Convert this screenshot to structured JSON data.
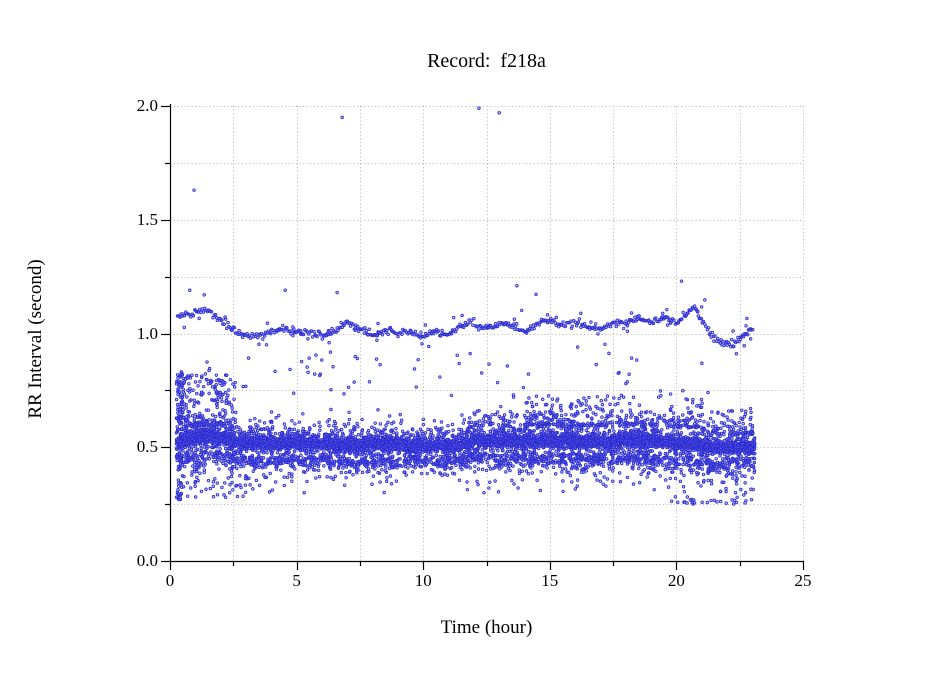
{
  "window": {
    "background_color": "#ffffff"
  },
  "chart_data": {
    "type": "scatter",
    "title": "Record:  f218a",
    "xlabel": "Time (hour)",
    "ylabel": "RR Interval (second)",
    "xlim": [
      0,
      25
    ],
    "ylim": [
      0.0,
      2.0
    ],
    "x_ticks": [
      {
        "v": 0,
        "label": "0"
      },
      {
        "v": 5,
        "label": "5"
      },
      {
        "v": 10,
        "label": "10"
      },
      {
        "v": 15,
        "label": "15"
      },
      {
        "v": 20,
        "label": "20"
      },
      {
        "v": 25,
        "label": "25"
      }
    ],
    "y_ticks": [
      {
        "v": 0.0,
        "label": "0.0"
      },
      {
        "v": 0.5,
        "label": "0.5"
      },
      {
        "v": 1.0,
        "label": "1.0"
      },
      {
        "v": 1.5,
        "label": "1.5"
      },
      {
        "v": 2.0,
        "label": "2.0"
      }
    ],
    "x_minor_step": 2.5,
    "y_minor_step": 0.25,
    "grid": {
      "visible": true,
      "style": "dotted",
      "color": "#b3b3b3",
      "at_minor_ticks": true
    },
    "point_color": "#2d2dd2",
    "point_fill": "rgba(130,130,235,0.45)",
    "axis_color": "#000000",
    "time_range": [
      0.25,
      23.1
    ],
    "seed": 1337,
    "profiles": {
      "main": [
        [
          0.25,
          0.525
        ],
        [
          0.7,
          0.535
        ],
        [
          1.2,
          0.545
        ],
        [
          1.8,
          0.55
        ],
        [
          2.3,
          0.535
        ],
        [
          2.8,
          0.52
        ],
        [
          3.5,
          0.52
        ],
        [
          4.5,
          0.515
        ],
        [
          5.5,
          0.52
        ],
        [
          6.5,
          0.515
        ],
        [
          7.5,
          0.51
        ],
        [
          8.5,
          0.515
        ],
        [
          9.5,
          0.505
        ],
        [
          10.5,
          0.51
        ],
        [
          11.3,
          0.508
        ],
        [
          11.8,
          0.52
        ],
        [
          12.2,
          0.535
        ],
        [
          12.8,
          0.528
        ],
        [
          13.5,
          0.53
        ],
        [
          14.5,
          0.528
        ],
        [
          15.5,
          0.53
        ],
        [
          16.5,
          0.522
        ],
        [
          17.5,
          0.528
        ],
        [
          18.5,
          0.53
        ],
        [
          19.5,
          0.528
        ],
        [
          20.3,
          0.52
        ],
        [
          21.0,
          0.515
        ],
        [
          21.4,
          0.5
        ],
        [
          21.9,
          0.495
        ],
        [
          22.4,
          0.5
        ],
        [
          23.1,
          0.502
        ]
      ],
      "lower": [
        [
          0.25,
          0.46
        ],
        [
          1.0,
          0.452
        ],
        [
          1.8,
          0.468
        ],
        [
          2.5,
          0.45
        ],
        [
          3.0,
          0.44
        ],
        [
          4.0,
          0.445
        ],
        [
          5.0,
          0.44
        ],
        [
          6.0,
          0.445
        ],
        [
          7.0,
          0.44
        ],
        [
          8.0,
          0.44
        ],
        [
          9.0,
          0.435
        ],
        [
          10.0,
          0.44
        ],
        [
          11.0,
          0.436
        ],
        [
          12.0,
          0.455
        ],
        [
          13.0,
          0.45
        ],
        [
          14.0,
          0.45
        ],
        [
          15.0,
          0.452
        ],
        [
          16.0,
          0.445
        ],
        [
          17.0,
          0.45
        ],
        [
          18.0,
          0.446
        ],
        [
          19.0,
          0.45
        ],
        [
          20.0,
          0.44
        ],
        [
          21.0,
          0.43
        ],
        [
          21.5,
          0.42
        ],
        [
          22.0,
          0.428
        ],
        [
          23.1,
          0.435
        ]
      ],
      "upper1": [
        [
          0.3,
          1.07
        ],
        [
          0.8,
          1.08
        ],
        [
          1.3,
          1.1
        ],
        [
          1.8,
          1.07
        ],
        [
          2.3,
          1.04
        ],
        [
          2.8,
          1.0
        ],
        [
          3.3,
          0.98
        ],
        [
          3.8,
          1.0
        ],
        [
          4.3,
          1.02
        ],
        [
          5.0,
          1.0
        ],
        [
          5.5,
          1.01
        ],
        [
          6.0,
          0.99
        ],
        [
          6.5,
          1.0
        ],
        [
          7.0,
          1.04
        ],
        [
          7.5,
          1.02
        ],
        [
          8.0,
          1.0
        ],
        [
          8.5,
          1.01
        ],
        [
          9.0,
          0.99
        ],
        [
          9.5,
          1.0
        ],
        [
          10.0,
          0.985
        ],
        [
          10.5,
          1.0
        ],
        [
          11.0,
          1.0
        ],
        [
          11.5,
          1.03
        ],
        [
          12.0,
          1.04
        ],
        [
          12.5,
          1.03
        ],
        [
          13.0,
          1.05
        ],
        [
          13.5,
          1.04
        ],
        [
          14.0,
          1.02
        ],
        [
          14.5,
          1.04
        ],
        [
          15.0,
          1.06
        ],
        [
          15.5,
          1.05
        ],
        [
          16.0,
          1.04
        ],
        [
          16.5,
          1.05
        ],
        [
          17.0,
          1.03
        ],
        [
          17.5,
          1.05
        ],
        [
          18.0,
          1.04
        ],
        [
          18.5,
          1.06
        ],
        [
          19.0,
          1.05
        ],
        [
          19.5,
          1.07
        ],
        [
          20.0,
          1.06
        ],
        [
          20.4,
          1.1
        ],
        [
          20.7,
          1.13
        ],
        [
          21.0,
          1.06
        ],
        [
          21.4,
          0.99
        ],
        [
          21.8,
          0.94
        ],
        [
          22.2,
          0.95
        ],
        [
          22.6,
          0.99
        ],
        [
          23.0,
          1.01
        ]
      ]
    },
    "bands": [
      {
        "type": "gauss_profile",
        "profile": "main",
        "count": 5200,
        "x": [
          0.25,
          23.1
        ],
        "sigma": 0.013,
        "wide_frac": 0.18,
        "wide_sigma": 0.033,
        "noise_amp": 0.006
      },
      {
        "type": "one_sided",
        "profile": "main",
        "side": 1,
        "count": 750,
        "x": [
          0.25,
          23.1
        ],
        "scale": 0.05,
        "offset": 0.012
      },
      {
        "type": "one_sided",
        "profile": "main",
        "side": -1,
        "count": 450,
        "x": [
          0.25,
          23.1
        ],
        "scale": 0.04,
        "offset": 0.012
      },
      {
        "type": "gauss_profile",
        "profile": "lower",
        "count": 1100,
        "x": [
          0.25,
          23.1
        ],
        "sigma": 0.012,
        "wide_frac": 0.2,
        "wide_sigma": 0.025,
        "noise_amp": 0.005
      },
      {
        "type": "one_sided",
        "profile": "lower",
        "side": -1,
        "count": 260,
        "x": [
          0.25,
          23.1
        ],
        "scale": 0.035,
        "offset": 0.01
      },
      {
        "type": "walk",
        "profile": "upper1",
        "x": [
          0.3,
          23.02
        ],
        "dt": [
          0.028,
          0.06
        ],
        "sigma": 0.008,
        "noise_amp": 0.013
      },
      {
        "type": "gauss_profile",
        "profile": "upper1",
        "count": 60,
        "x": [
          0.3,
          23.0
        ],
        "sigma": 0.03,
        "wide_frac": 0.15,
        "wide_sigma": 0.06,
        "noise_amp": 0.0
      },
      {
        "type": "uniform_offset",
        "profile": "main",
        "count": 170,
        "x": [
          0.25,
          2.6
        ],
        "off": [
          0.05,
          0.3
        ],
        "bias": 2.2
      },
      {
        "type": "uniform_offset",
        "profile": "main",
        "count": 260,
        "x": [
          14.0,
          21.0
        ],
        "off": [
          0.07,
          0.2
        ],
        "bias": 2.2
      },
      {
        "type": "uniform_offset",
        "profile": "main",
        "count": 90,
        "x": [
          11.5,
          16.5
        ],
        "off": [
          0.06,
          0.13
        ],
        "bias": 1.8
      },
      {
        "type": "uniform_offset",
        "profile": "main",
        "count": 70,
        "x": [
          21.0,
          23.1
        ],
        "off": [
          0.06,
          0.18
        ],
        "bias": 2.0
      },
      {
        "type": "uniform",
        "count": 75,
        "x": [
          0.3,
          0.5
        ],
        "y": [
          0.27,
          0.85
        ]
      },
      {
        "type": "uniform",
        "count": 18,
        "x": [
          0.3,
          0.9
        ],
        "y": [
          0.74,
          0.82
        ]
      },
      {
        "type": "uniform",
        "count": 28,
        "x": [
          1.4,
          2.3
        ],
        "y": [
          0.7,
          0.8
        ]
      },
      {
        "type": "uniform",
        "count": 55,
        "x": [
          0.25,
          23.1
        ],
        "y": [
          0.72,
          0.92
        ]
      },
      {
        "type": "uniform",
        "count": 55,
        "x": [
          0.25,
          3.0
        ],
        "y": [
          0.28,
          0.42
        ]
      },
      {
        "type": "uniform",
        "count": 55,
        "x": [
          3.0,
          14.0
        ],
        "y": [
          0.3,
          0.42
        ]
      },
      {
        "type": "uniform",
        "count": 35,
        "x": [
          14.0,
          19.5
        ],
        "y": [
          0.3,
          0.42
        ]
      },
      {
        "type": "uniform",
        "count": 85,
        "x": [
          19.5,
          23.1
        ],
        "y": [
          0.25,
          0.42
        ]
      }
    ],
    "outliers": [
      [
        0.95,
        1.63
      ],
      [
        6.8,
        1.95
      ],
      [
        12.2,
        1.99
      ],
      [
        13.0,
        1.97
      ],
      [
        4.55,
        1.19
      ],
      [
        6.6,
        1.18
      ],
      [
        13.7,
        1.21
      ],
      [
        20.2,
        1.23
      ],
      [
        0.78,
        1.19
      ],
      [
        1.35,
        1.17
      ],
      [
        0.35,
        0.27
      ],
      [
        2.2,
        0.28
      ],
      [
        5.3,
        0.3
      ],
      [
        12.4,
        0.3
      ],
      [
        21.6,
        0.26
      ],
      [
        22.4,
        0.28
      ],
      [
        7.4,
        0.89
      ],
      [
        9.8,
        0.885
      ],
      [
        16.1,
        0.94
      ]
    ]
  }
}
